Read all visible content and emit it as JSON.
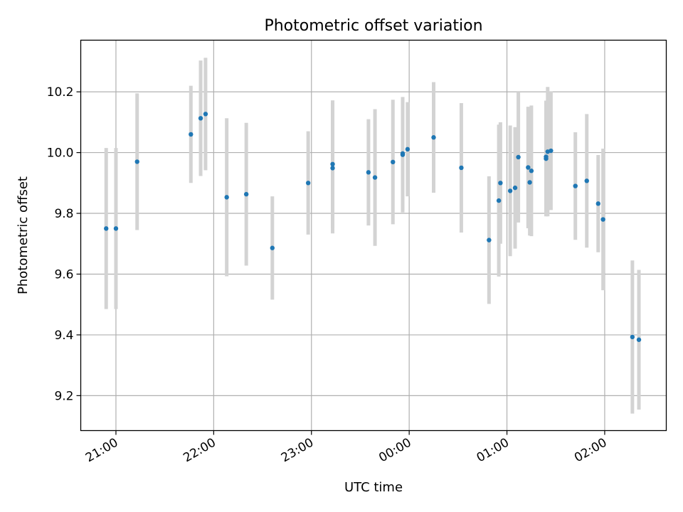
{
  "chart_data": {
    "type": "scatter",
    "title": "Photometric offset variation",
    "xlabel": "UTC time",
    "ylabel": "Photometric offset",
    "x_ticks": [
      "21:00",
      "22:00",
      "23:00",
      "00:00",
      "01:00",
      "02:00"
    ],
    "y_ticks": [
      "9.2",
      "9.4",
      "9.6",
      "9.8",
      "10.0",
      "10.2"
    ],
    "xlim_hours": [
      20.64,
      26.63
    ],
    "ylim": [
      9.085,
      10.37
    ],
    "grid": true,
    "colors": {
      "marker": "#1f77b4",
      "errorbar": "#d3d3d3",
      "grid": "#b0b0b0"
    },
    "points": [
      {
        "t": "20:54",
        "y": 9.75,
        "err": 0.265
      },
      {
        "t": "21:00",
        "y": 9.75,
        "err": 0.265
      },
      {
        "t": "21:13",
        "y": 9.97,
        "err": 0.225
      },
      {
        "t": "21:46",
        "y": 10.06,
        "err": 0.16
      },
      {
        "t": "21:52",
        "y": 10.113,
        "err": 0.19
      },
      {
        "t": "21:55",
        "y": 10.127,
        "err": 0.185
      },
      {
        "t": "22:08",
        "y": 9.853,
        "err": 0.26
      },
      {
        "t": "22:20",
        "y": 9.863,
        "err": 0.235
      },
      {
        "t": "22:36",
        "y": 9.686,
        "err": 0.17
      },
      {
        "t": "22:58",
        "y": 9.9,
        "err": 0.17
      },
      {
        "t": "23:13",
        "y": 9.962,
        "err": 0.21
      },
      {
        "t": "23:13",
        "y": 9.949,
        "err": 0.215
      },
      {
        "t": "23:35",
        "y": 9.935,
        "err": 0.175
      },
      {
        "t": "23:39",
        "y": 9.918,
        "err": 0.225
      },
      {
        "t": "23:50",
        "y": 9.969,
        "err": 0.205
      },
      {
        "t": "23:56",
        "y": 9.997,
        "err": 0.185
      },
      {
        "t": "23:56",
        "y": 9.993,
        "err": 0.19
      },
      {
        "t": "23:59",
        "y": 10.011,
        "err": 0.155
      },
      {
        "t": "00:15",
        "y": 10.05,
        "err": 0.182
      },
      {
        "t": "00:32",
        "y": 9.95,
        "err": 0.213
      },
      {
        "t": "00:49",
        "y": 9.712,
        "err": 0.21
      },
      {
        "t": "00:55",
        "y": 9.842,
        "err": 0.25
      },
      {
        "t": "00:56",
        "y": 9.9,
        "err": 0.2
      },
      {
        "t": "01:02",
        "y": 9.874,
        "err": 0.215
      },
      {
        "t": "01:05",
        "y": 9.884,
        "err": 0.2
      },
      {
        "t": "01:07",
        "y": 9.985,
        "err": 0.215
      },
      {
        "t": "01:13",
        "y": 9.951,
        "err": 0.2
      },
      {
        "t": "01:14",
        "y": 9.902,
        "err": 0.175
      },
      {
        "t": "01:15",
        "y": 9.94,
        "err": 0.215
      },
      {
        "t": "01:24",
        "y": 9.98,
        "err": 0.19
      },
      {
        "t": "01:24",
        "y": 9.986,
        "err": 0.185
      },
      {
        "t": "01:25",
        "y": 10.003,
        "err": 0.213
      },
      {
        "t": "01:27",
        "y": 10.006,
        "err": 0.195
      },
      {
        "t": "01:42",
        "y": 9.89,
        "err": 0.177
      },
      {
        "t": "01:49",
        "y": 9.907,
        "err": 0.22
      },
      {
        "t": "01:56",
        "y": 9.832,
        "err": 0.16
      },
      {
        "t": "01:59",
        "y": 9.78,
        "err": 0.233
      },
      {
        "t": "02:17",
        "y": 9.393,
        "err": 0.252
      },
      {
        "t": "02:21",
        "y": 9.384,
        "err": 0.23
      }
    ]
  }
}
